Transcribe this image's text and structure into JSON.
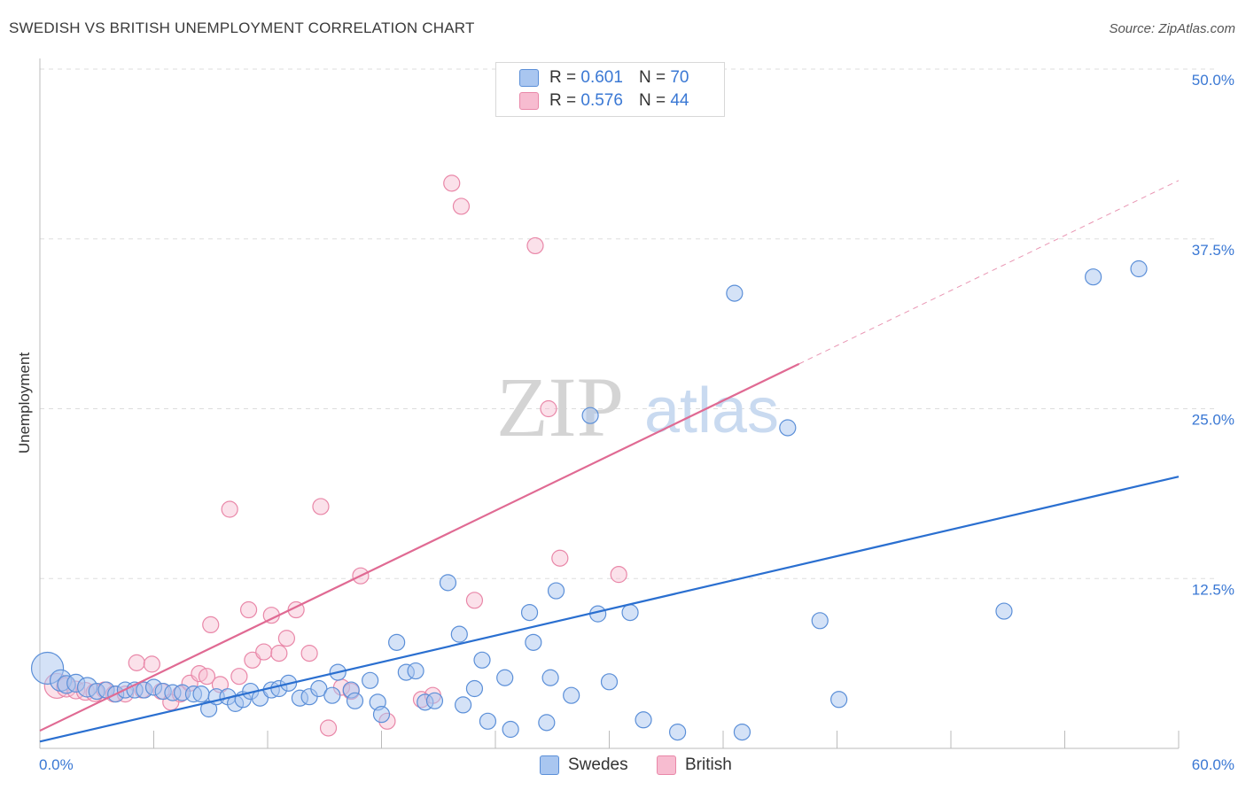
{
  "header": {
    "title": "SWEDISH VS BRITISH UNEMPLOYMENT CORRELATION CHART",
    "source": "Source: ZipAtlas.com"
  },
  "watermark": {
    "zip": "ZIP",
    "atlas": "atlas"
  },
  "legend": {
    "swedes": {
      "r_label": "R =",
      "r_value": "0.601",
      "n_label": "N =",
      "n_value": "70"
    },
    "british": {
      "r_label": "R =",
      "r_value": "0.576",
      "n_label": "N =",
      "n_value": "44"
    }
  },
  "bottom_legend": {
    "swedes": "Swedes",
    "british": "British"
  },
  "colors": {
    "swedes_fill": "#a9c6f0",
    "swedes_stroke": "#5b8fd8",
    "swedes_line": "#2a6fd0",
    "british_fill": "#f7bcd0",
    "british_stroke": "#e987a8",
    "british_line": "#e06a93",
    "grid": "#dddddd",
    "tick_text": "#3a78d4"
  },
  "chart_data": {
    "type": "scatter",
    "title": "SWEDISH VS BRITISH UNEMPLOYMENT CORRELATION CHART",
    "xlabel": "",
    "ylabel": "Unemployment",
    "xlim": [
      0,
      60
    ],
    "ylim": [
      0,
      50
    ],
    "x_tick_labels": [
      {
        "v": 0,
        "label": "0.0%"
      },
      {
        "v": 60,
        "label": "60.0%"
      }
    ],
    "y_ticks": [
      {
        "v": 12.5,
        "label": "12.5%"
      },
      {
        "v": 25,
        "label": "25.0%"
      },
      {
        "v": 37.5,
        "label": "37.5%"
      },
      {
        "v": 50,
        "label": "50.0%"
      }
    ],
    "series": [
      {
        "name": "Swedes",
        "r": 0.601,
        "n": 70,
        "trend": {
          "x0": 0,
          "y0": 0.5,
          "x1": 60,
          "y1": 20.0
        },
        "points": [
          [
            0.4,
            5.9,
            18
          ],
          [
            1.1,
            5.0,
            12
          ],
          [
            1.4,
            4.7,
            10
          ],
          [
            1.9,
            4.8,
            10
          ],
          [
            2.5,
            4.5,
            11
          ],
          [
            3.0,
            4.2,
            9
          ],
          [
            3.5,
            4.3,
            9
          ],
          [
            4.0,
            4.0,
            9
          ],
          [
            4.5,
            4.3,
            9
          ],
          [
            5.0,
            4.3,
            9
          ],
          [
            5.5,
            4.3,
            9
          ],
          [
            6.0,
            4.5,
            9
          ],
          [
            6.5,
            4.2,
            9
          ],
          [
            7.0,
            4.1,
            9
          ],
          [
            7.5,
            4.1,
            9
          ],
          [
            8.1,
            4.0,
            9
          ],
          [
            8.5,
            4.0,
            9
          ],
          [
            8.9,
            2.9,
            9
          ],
          [
            9.3,
            3.8,
            9
          ],
          [
            9.9,
            3.8,
            9
          ],
          [
            10.3,
            3.3,
            9
          ],
          [
            10.7,
            3.6,
            9
          ],
          [
            11.1,
            4.2,
            9
          ],
          [
            11.6,
            3.7,
            9
          ],
          [
            12.2,
            4.3,
            9
          ],
          [
            12.6,
            4.4,
            9
          ],
          [
            13.1,
            4.8,
            9
          ],
          [
            13.7,
            3.7,
            9
          ],
          [
            14.2,
            3.8,
            9
          ],
          [
            14.7,
            4.4,
            9
          ],
          [
            15.4,
            3.9,
            9
          ],
          [
            15.7,
            5.6,
            9
          ],
          [
            16.4,
            4.3,
            9
          ],
          [
            16.6,
            3.5,
            9
          ],
          [
            17.4,
            5.0,
            9
          ],
          [
            17.8,
            3.4,
            9
          ],
          [
            18.0,
            2.5,
            9
          ],
          [
            18.8,
            7.8,
            9
          ],
          [
            19.3,
            5.6,
            9
          ],
          [
            19.8,
            5.7,
            9
          ],
          [
            20.3,
            3.4,
            9
          ],
          [
            20.8,
            3.5,
            9
          ],
          [
            21.5,
            12.2,
            9
          ],
          [
            22.1,
            8.4,
            9
          ],
          [
            22.3,
            3.2,
            9
          ],
          [
            22.9,
            4.4,
            9
          ],
          [
            23.3,
            6.5,
            9
          ],
          [
            23.6,
            2.0,
            9
          ],
          [
            24.5,
            5.2,
            9
          ],
          [
            24.8,
            1.4,
            9
          ],
          [
            25.8,
            10.0,
            9
          ],
          [
            26.0,
            7.8,
            9
          ],
          [
            26.7,
            1.9,
            9
          ],
          [
            26.9,
            5.2,
            9
          ],
          [
            27.2,
            11.6,
            9
          ],
          [
            28.0,
            3.9,
            9
          ],
          [
            29.0,
            24.5,
            9
          ],
          [
            29.4,
            9.9,
            9
          ],
          [
            30.0,
            4.9,
            9
          ],
          [
            31.1,
            10.0,
            9
          ],
          [
            31.8,
            2.1,
            9
          ],
          [
            33.6,
            1.2,
            9
          ],
          [
            36.6,
            33.5,
            9
          ],
          [
            37.0,
            1.2,
            9
          ],
          [
            39.4,
            23.6,
            9
          ],
          [
            41.1,
            9.4,
            9
          ],
          [
            42.1,
            3.6,
            9
          ],
          [
            50.8,
            10.1,
            9
          ],
          [
            55.5,
            34.7,
            9
          ],
          [
            57.9,
            35.3,
            9
          ]
        ]
      },
      {
        "name": "British",
        "r": 0.576,
        "n": 44,
        "trend": {
          "x0": 0,
          "y0": 1.3,
          "x1": 40,
          "y1": 28.3,
          "dash_to_x": 60,
          "dash_to_y": 41.8
        },
        "points": [
          [
            0.9,
            4.6,
            14
          ],
          [
            1.4,
            4.5,
            11
          ],
          [
            1.9,
            4.3,
            10
          ],
          [
            2.4,
            4.2,
            10
          ],
          [
            2.9,
            4.1,
            10
          ],
          [
            3.4,
            4.3,
            9
          ],
          [
            3.9,
            4.0,
            9
          ],
          [
            4.5,
            4.0,
            9
          ],
          [
            5.1,
            6.3,
            9
          ],
          [
            5.4,
            4.3,
            9
          ],
          [
            5.9,
            6.2,
            9
          ],
          [
            6.4,
            4.2,
            9
          ],
          [
            6.9,
            3.4,
            9
          ],
          [
            7.4,
            4.0,
            9
          ],
          [
            7.9,
            4.8,
            9
          ],
          [
            8.4,
            5.5,
            9
          ],
          [
            8.8,
            5.3,
            9
          ],
          [
            9.0,
            9.1,
            9
          ],
          [
            9.5,
            4.7,
            9
          ],
          [
            10.0,
            17.6,
            9
          ],
          [
            10.5,
            5.3,
            9
          ],
          [
            11.0,
            10.2,
            9
          ],
          [
            11.2,
            6.5,
            9
          ],
          [
            11.8,
            7.1,
            9
          ],
          [
            12.2,
            9.8,
            9
          ],
          [
            12.6,
            7.0,
            9
          ],
          [
            13.0,
            8.1,
            9
          ],
          [
            13.5,
            10.2,
            9
          ],
          [
            14.2,
            7.0,
            9
          ],
          [
            14.8,
            17.8,
            9
          ],
          [
            15.2,
            1.5,
            9
          ],
          [
            15.9,
            4.5,
            9
          ],
          [
            16.4,
            4.2,
            9
          ],
          [
            16.9,
            12.7,
            9
          ],
          [
            18.3,
            2.0,
            9
          ],
          [
            20.1,
            3.6,
            9
          ],
          [
            20.7,
            3.9,
            9
          ],
          [
            21.7,
            41.6,
            9
          ],
          [
            22.2,
            39.9,
            9
          ],
          [
            22.9,
            10.9,
            9
          ],
          [
            26.1,
            37.0,
            9
          ],
          [
            26.8,
            25.0,
            9
          ],
          [
            27.4,
            14.0,
            9
          ],
          [
            30.5,
            12.8,
            9
          ]
        ]
      }
    ]
  }
}
